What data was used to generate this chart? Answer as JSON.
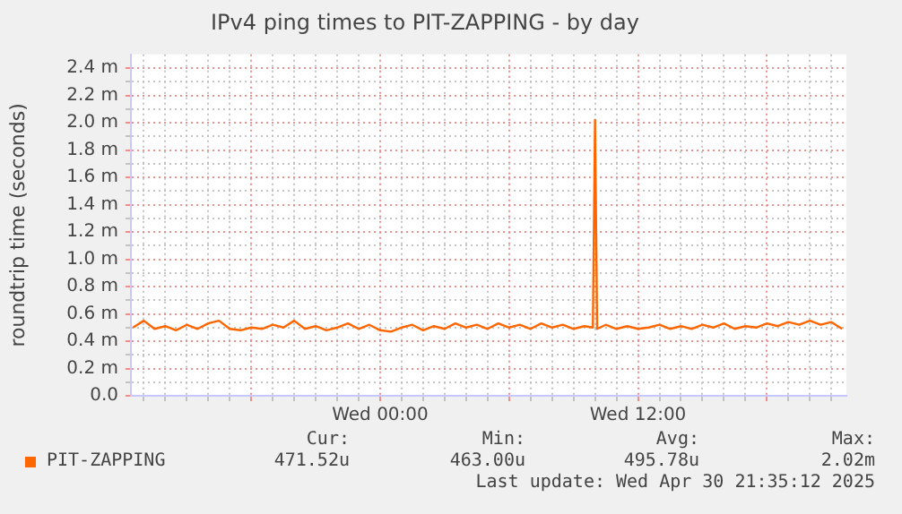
{
  "chart_data": {
    "type": "line",
    "title": "IPv4 ping times to PIT-ZAPPING - by day",
    "ylabel": "roundtrip time (seconds)",
    "x": [
      "2025-04-29T12:30",
      "2025-04-29T13:00",
      "2025-04-29T13:30",
      "2025-04-29T14:00",
      "2025-04-29T14:30",
      "2025-04-29T15:00",
      "2025-04-29T15:30",
      "2025-04-29T16:00",
      "2025-04-29T16:30",
      "2025-04-29T17:00",
      "2025-04-29T17:30",
      "2025-04-29T18:00",
      "2025-04-29T18:30",
      "2025-04-29T19:00",
      "2025-04-29T19:30",
      "2025-04-29T20:00",
      "2025-04-29T20:30",
      "2025-04-29T21:00",
      "2025-04-29T21:30",
      "2025-04-29T22:00",
      "2025-04-29T22:30",
      "2025-04-29T23:00",
      "2025-04-29T23:30",
      "2025-04-30T00:00",
      "2025-04-30T00:30",
      "2025-04-30T01:00",
      "2025-04-30T01:30",
      "2025-04-30T02:00",
      "2025-04-30T02:30",
      "2025-04-30T03:00",
      "2025-04-30T03:30",
      "2025-04-30T04:00",
      "2025-04-30T04:30",
      "2025-04-30T05:00",
      "2025-04-30T05:30",
      "2025-04-30T06:00",
      "2025-04-30T06:30",
      "2025-04-30T07:00",
      "2025-04-30T07:30",
      "2025-04-30T08:00",
      "2025-04-30T08:30",
      "2025-04-30T09:00",
      "2025-04-30T09:30",
      "2025-04-30T09:54",
      "2025-04-30T10:00",
      "2025-04-30T10:06",
      "2025-04-30T10:30",
      "2025-04-30T11:00",
      "2025-04-30T11:30",
      "2025-04-30T12:00",
      "2025-04-30T12:30",
      "2025-04-30T13:00",
      "2025-04-30T13:30",
      "2025-04-30T14:00",
      "2025-04-30T14:30",
      "2025-04-30T15:00",
      "2025-04-30T15:30",
      "2025-04-30T16:00",
      "2025-04-30T16:30",
      "2025-04-30T17:00",
      "2025-04-30T17:30",
      "2025-04-30T18:00",
      "2025-04-30T18:30",
      "2025-04-30T19:00",
      "2025-04-30T19:30",
      "2025-04-30T20:00",
      "2025-04-30T20:30",
      "2025-04-30T21:00",
      "2025-04-30T21:30"
    ],
    "series": [
      {
        "name": "PIT-ZAPPING",
        "color": "#ff6600",
        "values": [
          0.5,
          0.55,
          0.49,
          0.51,
          0.48,
          0.52,
          0.49,
          0.53,
          0.55,
          0.49,
          0.48,
          0.5,
          0.49,
          0.52,
          0.5,
          0.55,
          0.49,
          0.51,
          0.48,
          0.5,
          0.53,
          0.49,
          0.52,
          0.48,
          0.47,
          0.5,
          0.52,
          0.48,
          0.51,
          0.49,
          0.53,
          0.5,
          0.52,
          0.49,
          0.53,
          0.5,
          0.52,
          0.49,
          0.53,
          0.5,
          0.52,
          0.49,
          0.51,
          0.5,
          2.02,
          0.49,
          0.52,
          0.49,
          0.51,
          0.49,
          0.5,
          0.52,
          0.49,
          0.51,
          0.49,
          0.52,
          0.5,
          0.53,
          0.49,
          0.51,
          0.5,
          0.53,
          0.51,
          0.54,
          0.52,
          0.55,
          0.52,
          0.54,
          0.49
        ]
      }
    ],
    "xlim": [
      "2025-04-29T12:24",
      "2025-04-30T21:42"
    ],
    "xticks": [
      {
        "value": "2025-04-29T13:00",
        "label": null
      },
      {
        "value": "2025-04-29T14:00",
        "label": null
      },
      {
        "value": "2025-04-29T15:00",
        "label": null
      },
      {
        "value": "2025-04-29T16:00",
        "label": null
      },
      {
        "value": "2025-04-29T17:00",
        "label": null
      },
      {
        "value": "2025-04-29T18:00",
        "label": null
      },
      {
        "value": "2025-04-29T19:00",
        "label": null
      },
      {
        "value": "2025-04-29T20:00",
        "label": null
      },
      {
        "value": "2025-04-29T21:00",
        "label": null
      },
      {
        "value": "2025-04-29T22:00",
        "label": null
      },
      {
        "value": "2025-04-29T23:00",
        "label": null
      },
      {
        "value": "2025-04-30T00:00",
        "label": "Wed 00:00"
      },
      {
        "value": "2025-04-30T01:00",
        "label": null
      },
      {
        "value": "2025-04-30T02:00",
        "label": null
      },
      {
        "value": "2025-04-30T03:00",
        "label": null
      },
      {
        "value": "2025-04-30T04:00",
        "label": null
      },
      {
        "value": "2025-04-30T05:00",
        "label": null
      },
      {
        "value": "2025-04-30T06:00",
        "label": null
      },
      {
        "value": "2025-04-30T07:00",
        "label": null
      },
      {
        "value": "2025-04-30T08:00",
        "label": null
      },
      {
        "value": "2025-04-30T09:00",
        "label": null
      },
      {
        "value": "2025-04-30T10:00",
        "label": null
      },
      {
        "value": "2025-04-30T11:00",
        "label": null
      },
      {
        "value": "2025-04-30T12:00",
        "label": "Wed 12:00"
      },
      {
        "value": "2025-04-30T13:00",
        "label": null
      },
      {
        "value": "2025-04-30T14:00",
        "label": null
      },
      {
        "value": "2025-04-30T15:00",
        "label": null
      },
      {
        "value": "2025-04-30T16:00",
        "label": null
      },
      {
        "value": "2025-04-30T17:00",
        "label": null
      },
      {
        "value": "2025-04-30T18:00",
        "label": null
      },
      {
        "value": "2025-04-30T19:00",
        "label": null
      },
      {
        "value": "2025-04-30T20:00",
        "label": null
      },
      {
        "value": "2025-04-30T21:00",
        "label": null
      }
    ],
    "ylim": [
      0,
      2.5
    ],
    "yticks": [
      {
        "value": 0,
        "label": "0.0"
      },
      {
        "value": 0.1,
        "label": null
      },
      {
        "value": 0.2,
        "label": "0.2 m"
      },
      {
        "value": 0.3,
        "label": null
      },
      {
        "value": 0.4,
        "label": "0.4 m"
      },
      {
        "value": 0.5,
        "label": null
      },
      {
        "value": 0.6,
        "label": "0.6 m"
      },
      {
        "value": 0.7,
        "label": null
      },
      {
        "value": 0.8,
        "label": "0.8 m"
      },
      {
        "value": 0.9,
        "label": null
      },
      {
        "value": 1.0,
        "label": "1.0 m"
      },
      {
        "value": 1.1,
        "label": null
      },
      {
        "value": 1.2,
        "label": "1.2 m"
      },
      {
        "value": 1.3,
        "label": null
      },
      {
        "value": 1.4,
        "label": "1.4 m"
      },
      {
        "value": 1.5,
        "label": null
      },
      {
        "value": 1.6,
        "label": "1.6 m"
      },
      {
        "value": 1.7,
        "label": null
      },
      {
        "value": 1.8,
        "label": "1.8 m"
      },
      {
        "value": 1.9,
        "label": null
      },
      {
        "value": 2.0,
        "label": "2.0 m"
      },
      {
        "value": 2.1,
        "label": null
      },
      {
        "value": 2.2,
        "label": "2.2 m"
      },
      {
        "value": 2.3,
        "label": null
      },
      {
        "value": 2.4,
        "label": "2.4 m"
      }
    ],
    "grid": true,
    "legend": "bottom left",
    "marker": "none",
    "line_style": "solid",
    "annotations": [
      "Cur:",
      "471.52u",
      "Min:",
      "463.00u",
      "Avg:",
      "495.78u",
      "Max:",
      "2.02m",
      "Last update: Wed Apr 30 21:35:12 2025"
    ]
  }
}
